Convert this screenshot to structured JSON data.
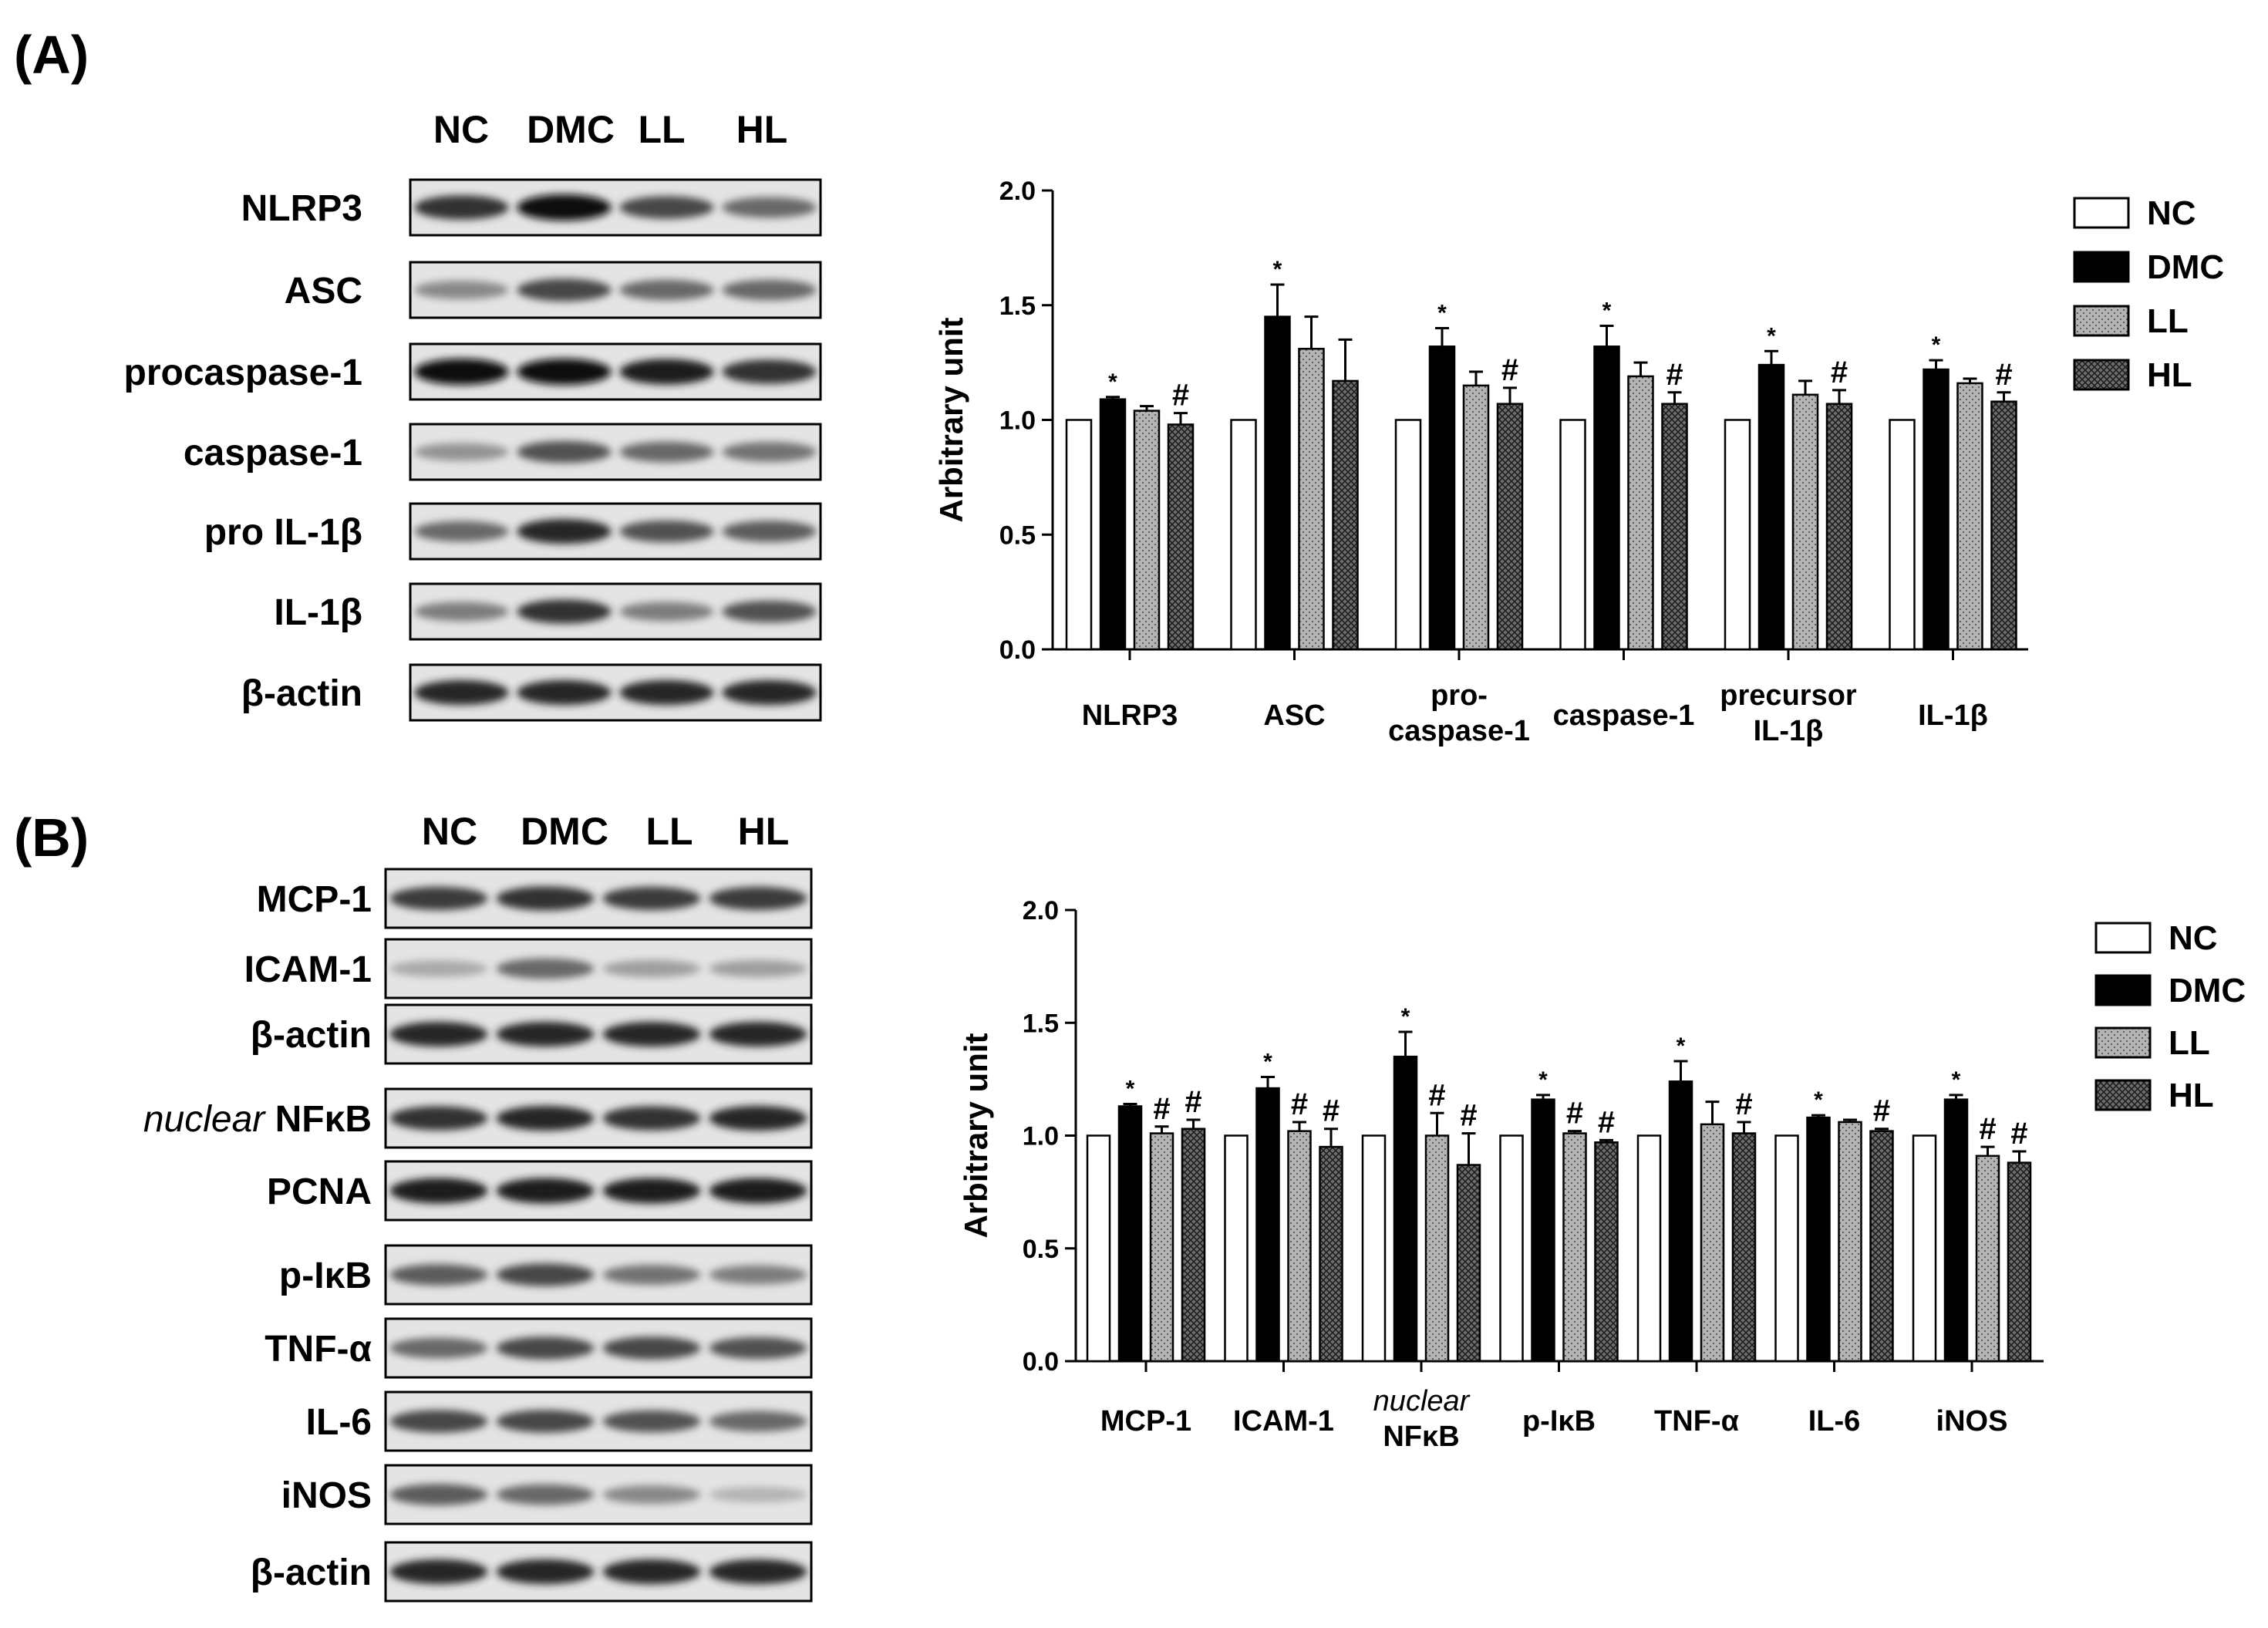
{
  "panels": [
    {
      "letter": "(A)",
      "lanes": [
        "NC",
        "DMC",
        "LL",
        "HL"
      ],
      "blots": [
        {
          "label": "NLRP3"
        },
        {
          "label": "ASC"
        },
        {
          "label": "procaspase-1"
        },
        {
          "label": "caspase-1"
        },
        {
          "label": "pro IL-1β"
        },
        {
          "label": "IL-1β"
        },
        {
          "label": "β-actin"
        }
      ]
    },
    {
      "letter": "(B)",
      "lanes": [
        "NC",
        "DMC",
        "LL",
        "HL"
      ],
      "blots": [
        {
          "label": "MCP-1"
        },
        {
          "label": "ICAM-1"
        },
        {
          "label": "β-actin"
        },
        {
          "label": "NFκB",
          "prefix_italic": "nuclear"
        },
        {
          "label": "PCNA"
        },
        {
          "label": "p-IκB"
        },
        {
          "label": "TNF-α"
        },
        {
          "label": "IL-6"
        },
        {
          "label": "iNOS"
        },
        {
          "label": "β-actin"
        }
      ]
    }
  ],
  "chart_data": [
    {
      "type": "bar",
      "ylabel": "Arbitrary unit",
      "ylim": [
        0,
        2.0
      ],
      "yticks": [
        "0.0",
        "0.5",
        "1.0",
        "1.5",
        "2.0"
      ],
      "categories": [
        {
          "lines": [
            "NLRP3"
          ]
        },
        {
          "lines": [
            "ASC"
          ]
        },
        {
          "lines": [
            "pro-",
            "caspase-1"
          ]
        },
        {
          "lines": [
            "caspase-1"
          ]
        },
        {
          "lines": [
            "precursor",
            "IL-1β"
          ]
        },
        {
          "lines": [
            "IL-1β"
          ]
        }
      ],
      "series": [
        {
          "name": "NC",
          "values": [
            1.0,
            1.0,
            1.0,
            1.0,
            1.0,
            1.0
          ],
          "errors": [
            0,
            0,
            0,
            0,
            0,
            0
          ],
          "marks": [
            "",
            "",
            "",
            "",
            "",
            ""
          ]
        },
        {
          "name": "DMC",
          "values": [
            1.09,
            1.45,
            1.32,
            1.32,
            1.24,
            1.22
          ],
          "errors": [
            0.01,
            0.14,
            0.08,
            0.09,
            0.06,
            0.04
          ],
          "marks": [
            "*",
            "*",
            "*",
            "*",
            "*",
            "*"
          ]
        },
        {
          "name": "LL",
          "values": [
            1.04,
            1.31,
            1.15,
            1.19,
            1.11,
            1.16
          ],
          "errors": [
            0.02,
            0.14,
            0.06,
            0.06,
            0.06,
            0.02
          ],
          "marks": [
            "",
            "",
            "",
            "",
            "",
            ""
          ]
        },
        {
          "name": "HL",
          "values": [
            0.98,
            1.17,
            1.07,
            1.07,
            1.07,
            1.08
          ],
          "errors": [
            0.05,
            0.18,
            0.07,
            0.05,
            0.06,
            0.04
          ],
          "marks": [
            "#",
            "",
            "#",
            "#",
            "#",
            "#"
          ]
        }
      ],
      "legend": [
        "NC",
        "DMC",
        "LL",
        "HL"
      ],
      "legend_position": "right"
    },
    {
      "type": "bar",
      "ylabel": "Arbitrary unit",
      "ylim": [
        0,
        2.0
      ],
      "yticks": [
        "0.0",
        "0.5",
        "1.0",
        "1.5",
        "2.0"
      ],
      "categories": [
        {
          "lines": [
            "MCP-1"
          ]
        },
        {
          "lines": [
            "ICAM-1"
          ]
        },
        {
          "lines": [
            "nuclear",
            "NFκB"
          ],
          "italic_first": true
        },
        {
          "lines": [
            "p-IκB"
          ]
        },
        {
          "lines": [
            "TNF-α"
          ]
        },
        {
          "lines": [
            "IL-6"
          ]
        },
        {
          "lines": [
            "iNOS"
          ]
        }
      ],
      "series": [
        {
          "name": "NC",
          "values": [
            1.0,
            1.0,
            1.0,
            1.0,
            1.0,
            1.0,
            1.0
          ],
          "errors": [
            0,
            0,
            0,
            0,
            0,
            0,
            0
          ],
          "marks": [
            "",
            "",
            "",
            "",
            "",
            "",
            ""
          ]
        },
        {
          "name": "DMC",
          "values": [
            1.13,
            1.21,
            1.35,
            1.16,
            1.24,
            1.08,
            1.16
          ],
          "errors": [
            0.01,
            0.05,
            0.11,
            0.02,
            0.09,
            0.01,
            0.02
          ],
          "marks": [
            "*",
            "*",
            "*",
            "*",
            "*",
            "*",
            "*"
          ]
        },
        {
          "name": "LL",
          "values": [
            1.01,
            1.02,
            1.0,
            1.01,
            1.05,
            1.06,
            0.91
          ],
          "errors": [
            0.03,
            0.04,
            0.1,
            0.01,
            0.1,
            0.01,
            0.04
          ],
          "marks": [
            "#",
            "#",
            "#",
            "#",
            "",
            "",
            "#"
          ]
        },
        {
          "name": "HL",
          "values": [
            1.03,
            0.95,
            0.87,
            0.97,
            1.01,
            1.02,
            0.88
          ],
          "errors": [
            0.04,
            0.08,
            0.14,
            0.01,
            0.05,
            0.01,
            0.05
          ],
          "marks": [
            "#",
            "#",
            "#",
            "#",
            "#",
            "#",
            "#"
          ]
        }
      ],
      "legend": [
        "NC",
        "DMC",
        "LL",
        "HL"
      ],
      "legend_position": "right"
    }
  ]
}
